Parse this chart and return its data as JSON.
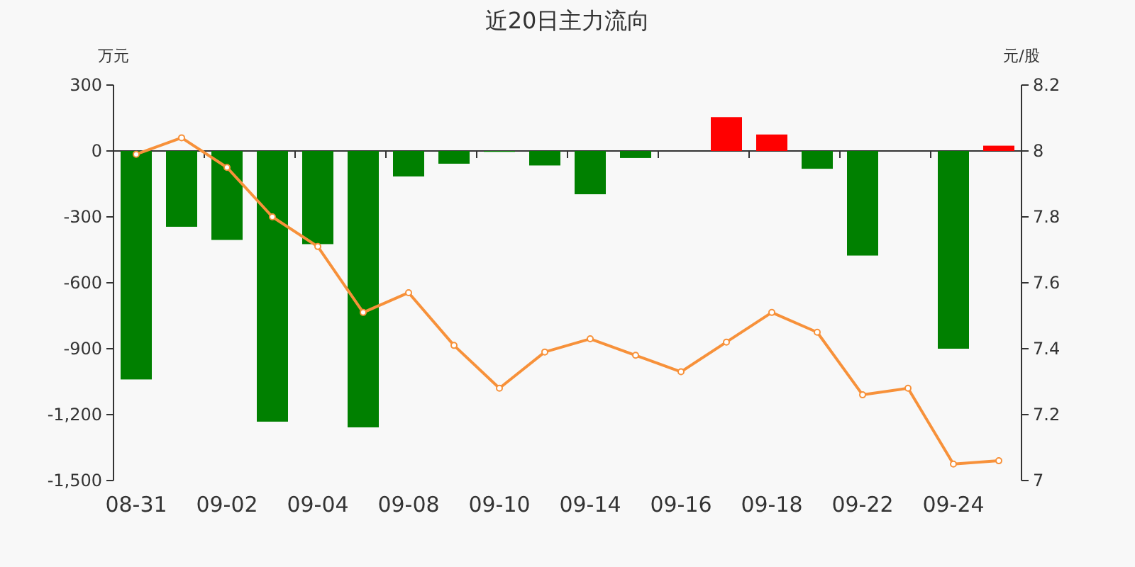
{
  "chart_data": {
    "type": "bar",
    "title": "近20日主力流向",
    "ylabel": "万元",
    "y2label": "元/股",
    "categories": [
      "08-31",
      null,
      "09-02",
      null,
      "09-04",
      null,
      "09-08",
      null,
      "09-10",
      null,
      "09-14",
      null,
      "09-16",
      null,
      "09-18",
      null,
      "09-22",
      null,
      "09-24",
      null
    ],
    "series": [
      {
        "values": [
          -1040,
          -345,
          -405,
          -1232,
          -424,
          -1258,
          -116,
          -58,
          -4,
          -66,
          -197,
          -32,
          0,
          154,
          75,
          -81,
          -476,
          0,
          -900,
          24
        ],
        "colors": [
          "#008000",
          "#008000",
          "#008000",
          "#008000",
          "#008000",
          "#008000",
          "#008000",
          "#008000",
          "#008000",
          "#008000",
          "#008000",
          "#008000",
          "#008000",
          "#ff0000",
          "#ff0000",
          "#008000",
          "#008000",
          "#008000",
          "#008000",
          "#ff0000"
        ]
      },
      {
        "type": "line",
        "axis": "y2",
        "color": "#f7913a",
        "marker": "circle",
        "values": [
          7.99,
          8.04,
          7.95,
          7.8,
          7.71,
          7.51,
          7.57,
          7.41,
          7.28,
          7.39,
          7.43,
          7.38,
          7.33,
          7.42,
          7.51,
          7.45,
          7.26,
          7.28,
          7.05,
          7.06
        ]
      }
    ],
    "ylim": [
      -1500,
      300
    ],
    "yticks": [
      300,
      0,
      -300,
      -600,
      -900,
      {
        "value": -1200,
        "label": "-1,200"
      },
      {
        "value": -1500,
        "label": "-1,500"
      }
    ],
    "y2lim": [
      7,
      8.2
    ],
    "y2ticks": [
      8.2,
      8,
      7.8,
      7.6,
      7.4,
      7.2,
      7
    ]
  }
}
